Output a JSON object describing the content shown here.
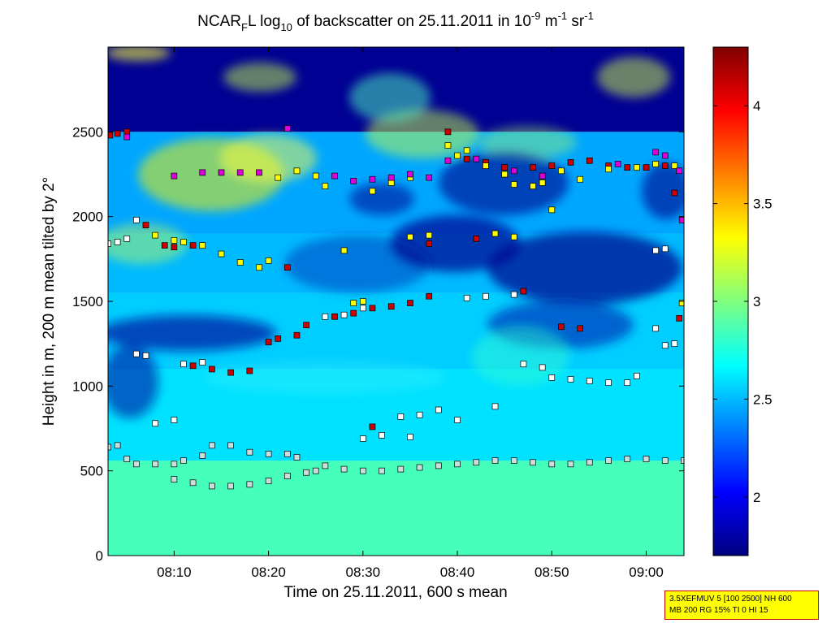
{
  "chart_data": {
    "type": "heatmap",
    "title": {
      "prefix": "NCAR",
      "prefix_sub": "F",
      "part2": "L log",
      "log_sub": "10",
      "part3": " of backscatter on 25.11.2011 in 10",
      "exp1": "-9",
      "part4": " m",
      "exp2": "-1",
      "part5": " sr",
      "exp3": "-1"
    },
    "xlabel": "Time on 25.11.2011, 600 s mean",
    "ylabel": "Height in m, 200 m mean tilted by 2°",
    "x_ticks": [
      "08:10",
      "08:20",
      "08:30",
      "08:40",
      "08:50",
      "09:00"
    ],
    "x_tick_minutes": [
      10,
      20,
      30,
      40,
      50,
      60
    ],
    "xlim_minutes": [
      3,
      64
    ],
    "y_ticks": [
      "0",
      "500",
      "1000",
      "1500",
      "2000",
      "2500"
    ],
    "y_tick_values": [
      0,
      500,
      1000,
      1500,
      2000,
      2500
    ],
    "ylim": [
      0,
      3000
    ],
    "colorbar": {
      "ticks": [
        "2",
        "2.5",
        "3",
        "3.5",
        "4"
      ],
      "tick_values": [
        2,
        2.5,
        3,
        3.5,
        4
      ],
      "range": [
        1.7,
        4.3
      ]
    },
    "layers": [
      {
        "minute_range": [
          3,
          64
        ],
        "height_range": [
          0,
          560
        ],
        "value": 2.85
      },
      {
        "minute_range": [
          3,
          64
        ],
        "height_range": [
          560,
          1100
        ],
        "value": 2.6
      },
      {
        "minute_range": [
          3,
          64
        ],
        "height_range": [
          1100,
          1550
        ],
        "value": 2.55
      },
      {
        "minute_range": [
          3,
          64
        ],
        "height_range": [
          1550,
          1900
        ],
        "value": 2.5
      },
      {
        "minute_range": [
          3,
          64
        ],
        "height_range": [
          1900,
          2500
        ],
        "value": 2.45
      },
      {
        "minute_range": [
          3,
          64
        ],
        "height_range": [
          2500,
          3000
        ],
        "value": 1.75
      }
    ],
    "series": [
      {
        "color": "#cc0000",
        "points": [
          [
            3.2,
            2480
          ],
          [
            4,
            2490
          ],
          [
            5,
            2500
          ],
          [
            7,
            1950
          ],
          [
            9,
            1830
          ],
          [
            10,
            1820
          ],
          [
            12,
            1830
          ],
          [
            12,
            1120
          ],
          [
            14,
            1100
          ],
          [
            16,
            1080
          ],
          [
            18,
            1090
          ],
          [
            20,
            1260
          ],
          [
            21,
            1280
          ],
          [
            23,
            1300
          ],
          [
            24,
            1360
          ],
          [
            22,
            1700
          ],
          [
            27,
            1410
          ],
          [
            29,
            1430
          ],
          [
            31,
            1460
          ],
          [
            33,
            1470
          ],
          [
            35,
            1490
          ],
          [
            37,
            1530
          ],
          [
            39,
            2500
          ],
          [
            41,
            2340
          ],
          [
            43,
            2320
          ],
          [
            45,
            2290
          ],
          [
            48,
            2290
          ],
          [
            50,
            2300
          ],
          [
            52,
            2320
          ],
          [
            54,
            2330
          ],
          [
            56,
            2300
          ],
          [
            58,
            2290
          ],
          [
            60,
            2290
          ],
          [
            62,
            2300
          ],
          [
            63,
            2140
          ],
          [
            63.5,
            1400
          ],
          [
            37,
            1840
          ],
          [
            42,
            1870
          ],
          [
            51,
            1350
          ],
          [
            53,
            1340
          ],
          [
            47,
            1560
          ],
          [
            31,
            760
          ]
        ]
      },
      {
        "color": "#ffff00",
        "points": [
          [
            8,
            1890
          ],
          [
            10,
            1860
          ],
          [
            11,
            1850
          ],
          [
            13,
            1830
          ],
          [
            15,
            1780
          ],
          [
            17,
            1730
          ],
          [
            19,
            1700
          ],
          [
            20,
            1740
          ],
          [
            21,
            2230
          ],
          [
            23,
            2270
          ],
          [
            25,
            2240
          ],
          [
            26,
            2180
          ],
          [
            28,
            1800
          ],
          [
            31,
            2150
          ],
          [
            33,
            2200
          ],
          [
            35,
            2230
          ],
          [
            35,
            1880
          ],
          [
            37,
            1890
          ],
          [
            39,
            2420
          ],
          [
            40,
            2360
          ],
          [
            41,
            2390
          ],
          [
            43,
            2300
          ],
          [
            45,
            2250
          ],
          [
            46,
            2190
          ],
          [
            48,
            2180
          ],
          [
            49,
            2200
          ],
          [
            51,
            2270
          ],
          [
            53,
            2220
          ],
          [
            56,
            2280
          ],
          [
            59,
            2290
          ],
          [
            61,
            2310
          ],
          [
            63,
            2300
          ],
          [
            63.8,
            1490
          ],
          [
            29,
            1490
          ],
          [
            30,
            1500
          ],
          [
            44,
            1900
          ],
          [
            46,
            1880
          ],
          [
            50,
            2040
          ]
        ]
      },
      {
        "color": "#dd00dd",
        "points": [
          [
            5,
            2470
          ],
          [
            10,
            2240
          ],
          [
            13,
            2260
          ],
          [
            15,
            2260
          ],
          [
            17,
            2260
          ],
          [
            19,
            2260
          ],
          [
            22,
            2520
          ],
          [
            27,
            2240
          ],
          [
            29,
            2210
          ],
          [
            31,
            2220
          ],
          [
            33,
            2230
          ],
          [
            35,
            2250
          ],
          [
            37,
            2230
          ],
          [
            39,
            2330
          ],
          [
            42,
            2340
          ],
          [
            46,
            2270
          ],
          [
            49,
            2240
          ],
          [
            57,
            2310
          ],
          [
            61,
            2380
          ],
          [
            62,
            2360
          ],
          [
            63.5,
            2270
          ],
          [
            63.8,
            1980
          ]
        ]
      },
      {
        "color": "#ffffff",
        "points": [
          [
            3,
            1840
          ],
          [
            4,
            1850
          ],
          [
            5,
            1870
          ],
          [
            6,
            1190
          ],
          [
            6,
            1980
          ],
          [
            7,
            1180
          ],
          [
            8,
            780
          ],
          [
            10,
            800
          ],
          [
            11,
            1130
          ],
          [
            13,
            1140
          ],
          [
            26,
            1410
          ],
          [
            28,
            1420
          ],
          [
            30,
            690
          ],
          [
            32,
            710
          ],
          [
            34,
            820
          ],
          [
            36,
            830
          ],
          [
            38,
            860
          ],
          [
            40,
            800
          ],
          [
            41,
            1520
          ],
          [
            43,
            1530
          ],
          [
            44,
            880
          ],
          [
            46,
            1540
          ],
          [
            47,
            1130
          ],
          [
            49,
            1110
          ],
          [
            50,
            1050
          ],
          [
            52,
            1040
          ],
          [
            54,
            1030
          ],
          [
            56,
            1020
          ],
          [
            58,
            1020
          ],
          [
            59,
            1060
          ],
          [
            61,
            1800
          ],
          [
            62,
            1810
          ],
          [
            61,
            1340
          ],
          [
            62,
            1240
          ],
          [
            63,
            1250
          ],
          [
            35,
            700
          ],
          [
            30,
            1460
          ]
        ]
      },
      {
        "color": "#ccdddd",
        "points": [
          [
            3,
            640
          ],
          [
            4,
            650
          ],
          [
            5,
            570
          ],
          [
            6,
            540
          ],
          [
            8,
            540
          ],
          [
            10,
            540
          ],
          [
            11,
            560
          ],
          [
            13,
            590
          ],
          [
            14,
            650
          ],
          [
            16,
            650
          ],
          [
            18,
            610
          ],
          [
            20,
            600
          ],
          [
            22,
            600
          ],
          [
            23,
            580
          ],
          [
            10,
            450
          ],
          [
            12,
            430
          ],
          [
            14,
            410
          ],
          [
            16,
            410
          ],
          [
            18,
            420
          ],
          [
            20,
            440
          ],
          [
            22,
            470
          ],
          [
            24,
            490
          ],
          [
            25,
            500
          ],
          [
            26,
            530
          ],
          [
            28,
            510
          ],
          [
            30,
            500
          ],
          [
            32,
            500
          ],
          [
            34,
            510
          ],
          [
            36,
            520
          ],
          [
            38,
            530
          ],
          [
            40,
            540
          ],
          [
            42,
            550
          ],
          [
            44,
            560
          ],
          [
            46,
            560
          ],
          [
            48,
            550
          ],
          [
            50,
            540
          ],
          [
            52,
            540
          ],
          [
            54,
            550
          ],
          [
            56,
            560
          ],
          [
            58,
            570
          ],
          [
            60,
            570
          ],
          [
            62,
            560
          ],
          [
            64,
            560
          ]
        ]
      }
    ]
  },
  "info_box": {
    "line1": "3.5XEFMUV 5 [100 2500] NH 600",
    "line2": "MB 200 RG 15% TI 0 HI 15"
  }
}
